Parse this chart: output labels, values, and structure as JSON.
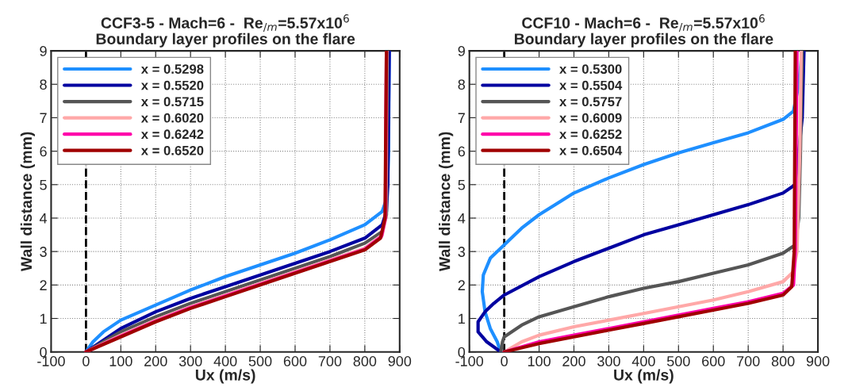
{
  "chart_data": [
    {
      "type": "line",
      "title": "CCF3-5 - Mach=6 -  Re$_{/m}$=5.57x10$^{6}$",
      "subtitle": "Boundary layer profiles on the flare",
      "xlabel": "Ux (m/s)",
      "ylabel": "Wall distance (mm)",
      "xlim": [
        -100,
        900
      ],
      "xticks": [
        -100,
        0,
        100,
        200,
        300,
        400,
        500,
        600,
        700,
        800,
        900
      ],
      "ylim": [
        0,
        9
      ],
      "yticks": [
        0,
        1,
        2,
        3,
        4,
        5,
        6,
        7,
        8,
        9
      ],
      "grid": true,
      "legend": "top left",
      "line_style": "solid",
      "ref_lines": [
        {
          "axis": "x",
          "value": 0,
          "color": "#000000",
          "line_style": "dashed"
        }
      ],
      "series": [
        {
          "name": "x = 0.5298",
          "color": "#1e8fff",
          "x": [
            0,
            20,
            50,
            100,
            200,
            300,
            400,
            500,
            600,
            700,
            800,
            850,
            860,
            865,
            868,
            870
          ],
          "values": [
            0,
            0.3,
            0.6,
            0.95,
            1.4,
            1.85,
            2.25,
            2.6,
            2.95,
            3.35,
            3.8,
            4.2,
            4.5,
            5,
            6,
            9
          ]
        },
        {
          "name": "x = 0.5520",
          "color": "#0000a0",
          "x": [
            0,
            50,
            100,
            200,
            300,
            400,
            500,
            600,
            700,
            800,
            850,
            862,
            866,
            870
          ],
          "values": [
            0,
            0.35,
            0.7,
            1.2,
            1.6,
            1.95,
            2.3,
            2.65,
            3.0,
            3.4,
            3.8,
            4.2,
            5,
            9
          ]
        },
        {
          "name": "x = 0.5715",
          "color": "#555555",
          "x": [
            0,
            100,
            200,
            300,
            400,
            500,
            600,
            700,
            800,
            850,
            862,
            865
          ],
          "values": [
            0,
            0.6,
            1.05,
            1.45,
            1.8,
            2.15,
            2.5,
            2.85,
            3.25,
            3.6,
            4.1,
            9
          ]
        },
        {
          "name": "x = 0.6020",
          "color": "#ffa8a8",
          "x": [
            0,
            100,
            200,
            300,
            400,
            500,
            600,
            700,
            800,
            850,
            860,
            863
          ],
          "values": [
            0,
            0.5,
            0.95,
            1.35,
            1.7,
            2.05,
            2.4,
            2.75,
            3.1,
            3.5,
            4,
            9
          ]
        },
        {
          "name": "x = 0.6242",
          "color": "#ff00aa",
          "x": [
            0,
            100,
            200,
            300,
            400,
            500,
            600,
            700,
            800,
            848,
            859,
            862
          ],
          "values": [
            0,
            0.47,
            0.92,
            1.32,
            1.67,
            2.02,
            2.37,
            2.72,
            3.07,
            3.45,
            4,
            9
          ]
        },
        {
          "name": "x = 0.6520",
          "color": "#a00000",
          "x": [
            0,
            100,
            200,
            300,
            400,
            500,
            600,
            700,
            800,
            845,
            858,
            862
          ],
          "values": [
            0,
            0.45,
            0.9,
            1.3,
            1.65,
            2.0,
            2.35,
            2.7,
            3.05,
            3.4,
            4,
            9
          ]
        }
      ]
    },
    {
      "type": "line",
      "title": "CCF10 - Mach=6 -  Re$_{/m}$=5.57x10$^{6}$",
      "subtitle": "Boundary layer profiles on the flare",
      "xlabel": "Ux (m/s)",
      "ylabel": "Wall distance (mm)",
      "xlim": [
        -100,
        900
      ],
      "xticks": [
        -100,
        0,
        100,
        200,
        300,
        400,
        500,
        600,
        700,
        800,
        900
      ],
      "ylim": [
        0,
        9
      ],
      "yticks": [
        0,
        1,
        2,
        3,
        4,
        5,
        6,
        7,
        8,
        9
      ],
      "grid": true,
      "legend": "top left",
      "line_style": "solid",
      "ref_lines": [
        {
          "axis": "x",
          "value": 0,
          "color": "#000000",
          "line_style": "dashed"
        }
      ],
      "series": [
        {
          "name": "x = 0.5300",
          "color": "#1e8fff",
          "x": [
            -10,
            -20,
            -40,
            -55,
            -63,
            -60,
            -40,
            0,
            50,
            100,
            200,
            300,
            400,
            500,
            600,
            700,
            800,
            830,
            845,
            855
          ],
          "values": [
            0,
            0.3,
            0.7,
            1.2,
            1.8,
            2.3,
            2.8,
            3.2,
            3.7,
            4.1,
            4.75,
            5.2,
            5.6,
            5.95,
            6.25,
            6.55,
            6.95,
            7.2,
            8,
            9
          ]
        },
        {
          "name": "x = 0.5504",
          "color": "#0000a0",
          "x": [
            -10,
            -50,
            -75,
            -75,
            -55,
            -30,
            0,
            100,
            200,
            300,
            400,
            500,
            600,
            700,
            800,
            835,
            845,
            855,
            860
          ],
          "values": [
            0,
            0.3,
            0.6,
            0.9,
            1.2,
            1.45,
            1.7,
            2.25,
            2.7,
            3.1,
            3.5,
            3.8,
            4.1,
            4.4,
            4.75,
            5.0,
            6,
            7,
            9
          ]
        },
        {
          "name": "x = 0.5757",
          "color": "#555555",
          "x": [
            -10,
            -5,
            0,
            50,
            100,
            200,
            300,
            400,
            500,
            600,
            700,
            800,
            835,
            845,
            850,
            855
          ],
          "values": [
            0,
            0.3,
            0.45,
            0.8,
            1.05,
            1.35,
            1.65,
            1.9,
            2.1,
            2.35,
            2.6,
            2.95,
            3.2,
            4,
            6,
            9
          ]
        },
        {
          "name": "x = 0.6009",
          "color": "#ffa8a8",
          "x": [
            0,
            50,
            100,
            200,
            300,
            400,
            500,
            600,
            700,
            800,
            830,
            840,
            848,
            852
          ],
          "values": [
            0,
            0.3,
            0.5,
            0.75,
            0.95,
            1.15,
            1.35,
            1.55,
            1.8,
            2.1,
            2.4,
            3,
            6,
            9
          ]
        },
        {
          "name": "x = 0.6252",
          "color": "#ff00aa",
          "x": [
            0,
            100,
            200,
            300,
            400,
            500,
            600,
            700,
            800,
            830,
            835,
            840
          ],
          "values": [
            0,
            0.3,
            0.5,
            0.7,
            0.9,
            1.1,
            1.3,
            1.5,
            1.75,
            2,
            3,
            9
          ]
        },
        {
          "name": "x = 0.6504",
          "color": "#a00000",
          "x": [
            0,
            100,
            200,
            300,
            400,
            500,
            600,
            700,
            800,
            825,
            832,
            835
          ],
          "values": [
            0,
            0.25,
            0.45,
            0.65,
            0.85,
            1.05,
            1.25,
            1.45,
            1.7,
            1.95,
            3,
            9
          ]
        }
      ]
    }
  ]
}
